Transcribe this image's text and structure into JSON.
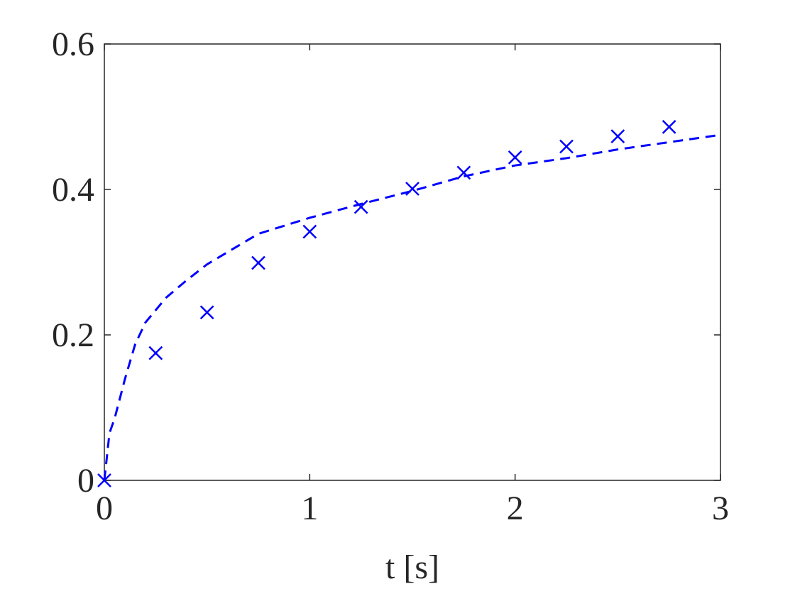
{
  "chart_data": {
    "type": "line",
    "xlabel": "t [s]",
    "xlim": [
      0,
      3
    ],
    "xticks": [
      0,
      1,
      2,
      3
    ],
    "ylim": [
      0,
      0.6
    ],
    "yticks": [
      0,
      0.2,
      0.4,
      0.6
    ],
    "series": [
      {
        "type": "scatter",
        "marker": "x",
        "color": "#0000ff",
        "x": [
          0,
          0.25,
          0.5,
          0.75,
          1,
          1.25,
          1.5,
          1.75,
          2,
          2.25,
          2.5,
          2.75
        ],
        "values": [
          0,
          0.175,
          0.231,
          0.299,
          0.342,
          0.376,
          0.401,
          0.423,
          0.444,
          0.459,
          0.473,
          0.486
        ]
      },
      {
        "type": "line",
        "dashed": true,
        "color": "#0000ff",
        "x": [
          0,
          0.025,
          0.05,
          0.1,
          0.15,
          0.2,
          0.3,
          0.4,
          0.5,
          0.75,
          1,
          1.25,
          1.5,
          1.75,
          2,
          2.25,
          2.5,
          2.75,
          3
        ],
        "values": [
          0,
          0.065,
          0.085,
          0.139,
          0.187,
          0.217,
          0.251,
          0.275,
          0.297,
          0.339,
          0.361,
          0.38,
          0.398,
          0.418,
          0.433,
          0.443,
          0.455,
          0.465,
          0.475
        ]
      }
    ]
  }
}
